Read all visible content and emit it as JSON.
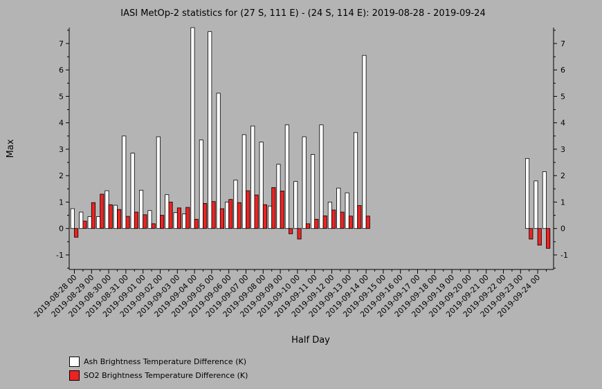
{
  "chart_data": {
    "type": "bar",
    "title": "IASI MetOp-2 statistics for (27 S, 111 E) - (24 S, 114 E): 2019-08-28 - 2019-09-24",
    "xlabel": "Half Day",
    "ylabel": "Max",
    "ylim": [
      -1.55,
      7.6
    ],
    "yticks": [
      -1,
      0,
      1,
      2,
      3,
      4,
      5,
      6,
      7
    ],
    "grid": false,
    "legend_position": "bottom-left",
    "tick_labels": [
      "2019-08-28 00",
      "2019-08-29 00",
      "2019-08-30 00",
      "2019-08-31 00",
      "2019-09-01 00",
      "2019-09-02 00",
      "2019-09-03 00",
      "2019-09-04 00",
      "2019-09-05 00",
      "2019-09-06 00",
      "2019-09-07 00",
      "2019-09-08 00",
      "2019-09-09 00",
      "2019-09-10 00",
      "2019-09-11 00",
      "2019-09-12 00",
      "2019-09-13 00",
      "2019-09-14 00",
      "2019-09-15 00",
      "2019-09-16 00",
      "2019-09-17 00",
      "2019-09-18 00",
      "2019-09-19 00",
      "2019-09-20 00",
      "2019-09-21 00",
      "2019-09-22 00",
      "2019-09-23 00",
      "2019-09-24 00"
    ],
    "num_half_days": 56,
    "series": [
      {
        "name": "Ash Brightness Temperature Difference (K)",
        "color": "#ffffff",
        "values": [
          0.75,
          0.62,
          0.45,
          0.45,
          1.43,
          0.88,
          3.5,
          2.85,
          1.45,
          0.68,
          3.47,
          1.28,
          0.6,
          0.55,
          7.6,
          3.35,
          7.45,
          5.12,
          1.0,
          1.83,
          3.55,
          3.88,
          3.27,
          0.85,
          2.43,
          3.92,
          1.78,
          3.47,
          2.8,
          3.92,
          1.0,
          1.53,
          1.35,
          3.63,
          6.55,
          null,
          null,
          null,
          null,
          null,
          null,
          null,
          null,
          null,
          null,
          null,
          null,
          null,
          null,
          null,
          null,
          null,
          null,
          2.65,
          1.8,
          2.15
        ]
      },
      {
        "name": "SO2 Brightness Temperature Difference (K)",
        "color": "#ee2222",
        "values": [
          -0.33,
          0.28,
          0.98,
          1.3,
          0.9,
          0.72,
          0.46,
          0.62,
          0.52,
          0.18,
          0.5,
          1.0,
          0.78,
          0.8,
          0.35,
          0.95,
          1.02,
          0.75,
          1.1,
          0.98,
          1.43,
          1.27,
          0.9,
          1.55,
          1.42,
          -0.2,
          -0.4,
          0.18,
          0.35,
          0.48,
          0.7,
          0.62,
          0.47,
          0.87,
          0.47,
          null,
          null,
          null,
          null,
          null,
          null,
          null,
          null,
          null,
          null,
          null,
          null,
          null,
          null,
          null,
          null,
          null,
          null,
          -0.4,
          -0.63,
          -0.75
        ]
      }
    ]
  }
}
